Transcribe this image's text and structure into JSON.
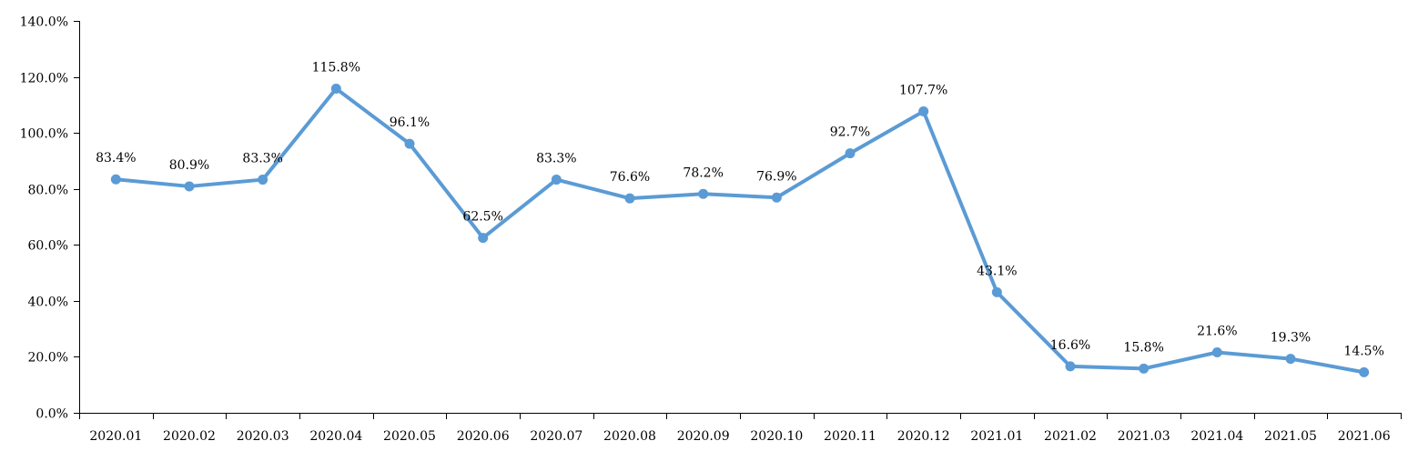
{
  "chart_data": {
    "type": "line",
    "title": "",
    "xlabel": "",
    "ylabel": "",
    "categories": [
      "2020.01",
      "2020.02",
      "2020.03",
      "2020.04",
      "2020.05",
      "2020.06",
      "2020.07",
      "2020.08",
      "2020.09",
      "2020.10",
      "2020.11",
      "2020.12",
      "2021.01",
      "2021.02",
      "2021.03",
      "2021.04",
      "2021.05",
      "2021.06"
    ],
    "series": [
      {
        "values": [
          83.4,
          80.9,
          83.3,
          115.8,
          96.1,
          62.5,
          83.3,
          76.6,
          78.2,
          76.9,
          92.7,
          107.7,
          43.1,
          16.6,
          15.8,
          21.6,
          19.3,
          14.5
        ],
        "labels": [
          "83.4%",
          "80.9%",
          "83.3%",
          "115.8%",
          "96.1%",
          "62.5%",
          "83.3%",
          "76.6%",
          "78.2%",
          "76.9%",
          "92.7%",
          "107.7%",
          "43.1%",
          "16.6%",
          "15.8%",
          "21.6%",
          "19.3%",
          "14.5%"
        ],
        "color": "#5b9bd5"
      }
    ],
    "ylim": [
      0,
      140
    ],
    "ytick_values": [
      0,
      20,
      40,
      60,
      80,
      100,
      120,
      140
    ],
    "ytick_labels": [
      "0.0%",
      "20.0%",
      "40.0%",
      "60.0%",
      "80.0%",
      "100.0%",
      "120.0%",
      "140.0%"
    ],
    "grid": false,
    "legend": "none",
    "colors": {
      "axis": "#000000",
      "text": "#000000",
      "series": "#5b9bd5"
    }
  }
}
